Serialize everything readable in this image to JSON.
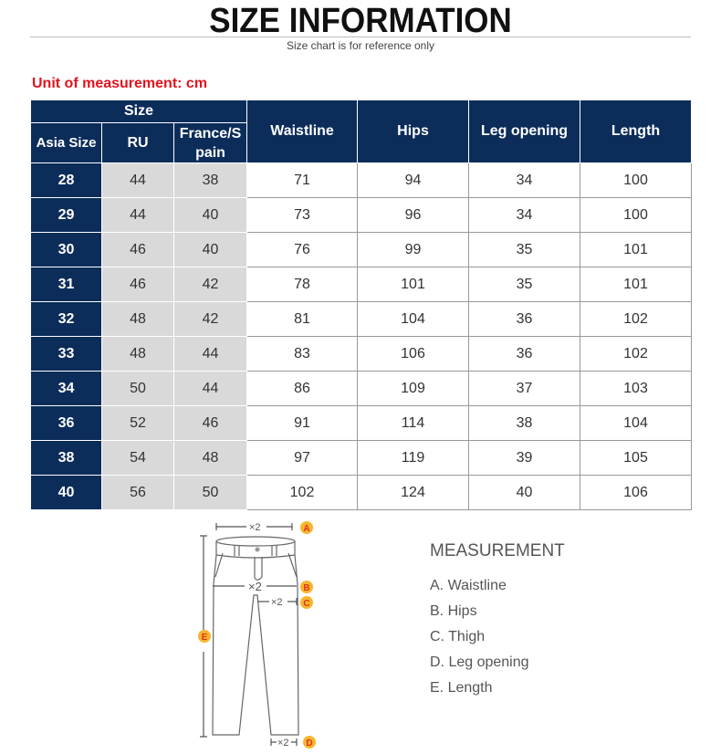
{
  "header": {
    "title": "SIZE INFORMATION",
    "subtitle": "Size chart is for reference only"
  },
  "unit_label": "Unit of measurement: cm",
  "table": {
    "group_header": "Size",
    "columns": [
      "Asia Size",
      "RU",
      "France/S pain",
      "Waistline",
      "Hips",
      "Leg opening",
      "Length"
    ],
    "rows": [
      [
        "28",
        "44",
        "38",
        "71",
        "94",
        "34",
        "100"
      ],
      [
        "29",
        "44",
        "40",
        "73",
        "96",
        "34",
        "100"
      ],
      [
        "30",
        "46",
        "40",
        "76",
        "99",
        "35",
        "101"
      ],
      [
        "31",
        "46",
        "42",
        "78",
        "101",
        "35",
        "101"
      ],
      [
        "32",
        "48",
        "42",
        "81",
        "104",
        "36",
        "102"
      ],
      [
        "33",
        "48",
        "44",
        "83",
        "106",
        "36",
        "102"
      ],
      [
        "34",
        "50",
        "44",
        "86",
        "109",
        "37",
        "103"
      ],
      [
        "36",
        "52",
        "46",
        "91",
        "114",
        "38",
        "104"
      ],
      [
        "38",
        "54",
        "48",
        "97",
        "119",
        "39",
        "105"
      ],
      [
        "40",
        "56",
        "50",
        "102",
        "124",
        "40",
        "106"
      ]
    ]
  },
  "diagram": {
    "multiplier": "×2",
    "markers": [
      "A",
      "B",
      "C",
      "D",
      "E"
    ],
    "marker_color": "#f7b52c",
    "letter_color": "#e0341e"
  },
  "measurement": {
    "title": "MEASUREMENT",
    "items": [
      "A. Waistline",
      "B. Hips",
      "C. Thigh",
      "D. Leg opening",
      "E. Length"
    ]
  }
}
